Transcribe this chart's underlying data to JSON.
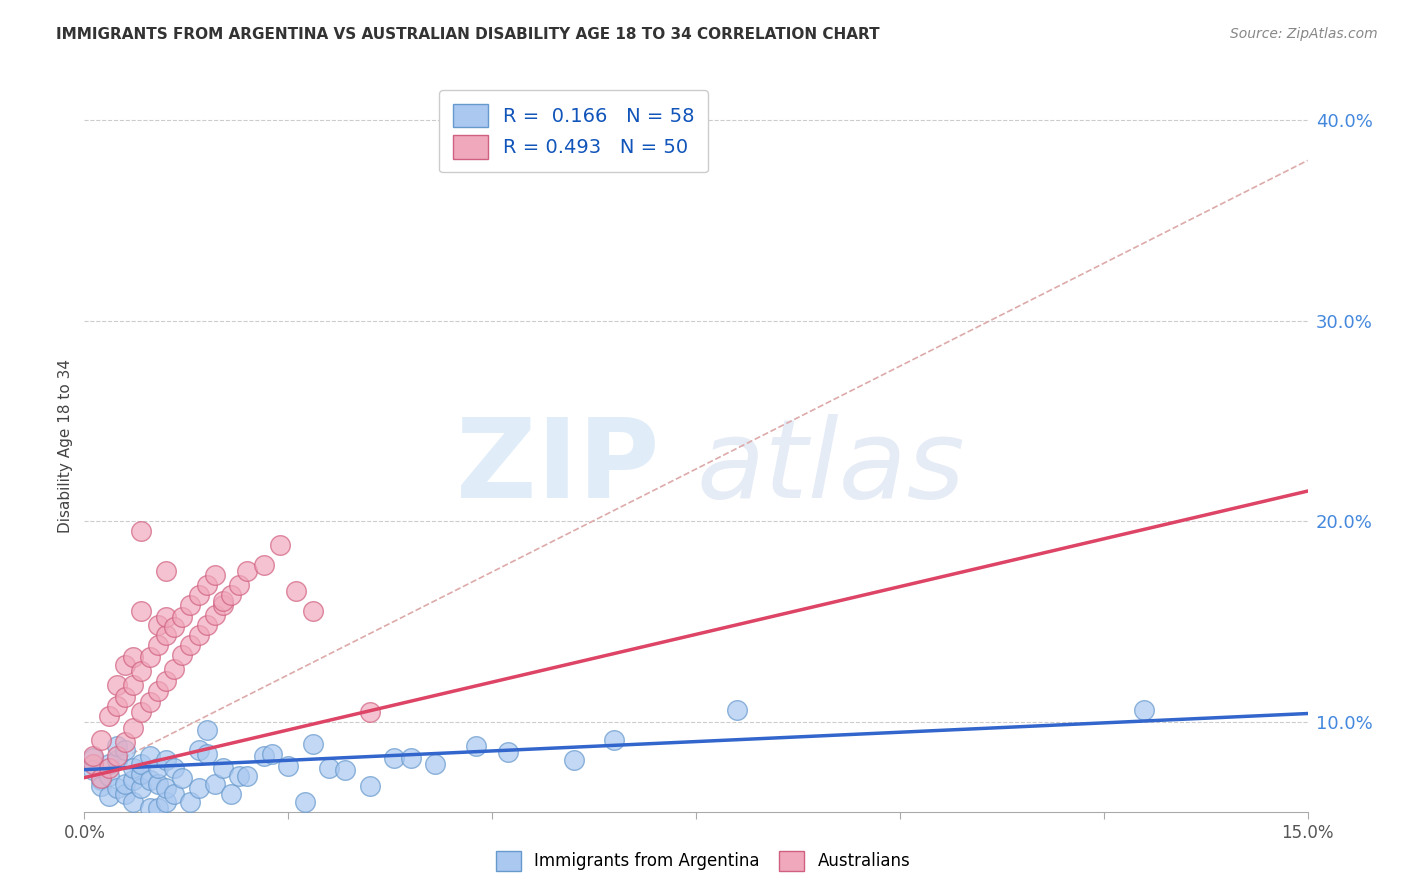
{
  "title": "IMMIGRANTS FROM ARGENTINA VS AUSTRALIAN DISABILITY AGE 18 TO 34 CORRELATION CHART",
  "source": "Source: ZipAtlas.com",
  "ylabel_label": "Disability Age 18 to 34",
  "legend1_r": "0.166",
  "legend1_n": "58",
  "legend2_r": "0.493",
  "legend2_n": "50",
  "legend1_label": "Immigrants from Argentina",
  "legend2_label": "Australians",
  "blue_color": "#aac8f0",
  "pink_color": "#f0a8bc",
  "blue_edge_color": "#6699cc",
  "pink_edge_color": "#d06080",
  "blue_line_color": "#3366cc",
  "pink_line_color": "#dd4466",
  "gray_dash_color": "#ddaaaa",
  "blue_scatter": [
    [
      0.001,
      0.082
    ],
    [
      0.001,
      0.076
    ],
    [
      0.002,
      0.071
    ],
    [
      0.002,
      0.068
    ],
    [
      0.003,
      0.073
    ],
    [
      0.003,
      0.063
    ],
    [
      0.003,
      0.079
    ],
    [
      0.004,
      0.067
    ],
    [
      0.004,
      0.081
    ],
    [
      0.004,
      0.088
    ],
    [
      0.005,
      0.086
    ],
    [
      0.005,
      0.064
    ],
    [
      0.005,
      0.069
    ],
    [
      0.006,
      0.06
    ],
    [
      0.006,
      0.071
    ],
    [
      0.006,
      0.077
    ],
    [
      0.007,
      0.067
    ],
    [
      0.007,
      0.074
    ],
    [
      0.007,
      0.079
    ],
    [
      0.008,
      0.057
    ],
    [
      0.008,
      0.071
    ],
    [
      0.008,
      0.083
    ],
    [
      0.009,
      0.057
    ],
    [
      0.009,
      0.069
    ],
    [
      0.009,
      0.077
    ],
    [
      0.01,
      0.06
    ],
    [
      0.01,
      0.067
    ],
    [
      0.01,
      0.081
    ],
    [
      0.011,
      0.064
    ],
    [
      0.011,
      0.077
    ],
    [
      0.012,
      0.072
    ],
    [
      0.013,
      0.06
    ],
    [
      0.014,
      0.067
    ],
    [
      0.014,
      0.086
    ],
    [
      0.015,
      0.096
    ],
    [
      0.015,
      0.084
    ],
    [
      0.016,
      0.069
    ],
    [
      0.017,
      0.077
    ],
    [
      0.018,
      0.064
    ],
    [
      0.019,
      0.073
    ],
    [
      0.02,
      0.073
    ],
    [
      0.022,
      0.083
    ],
    [
      0.023,
      0.084
    ],
    [
      0.025,
      0.078
    ],
    [
      0.027,
      0.06
    ],
    [
      0.028,
      0.089
    ],
    [
      0.03,
      0.077
    ],
    [
      0.032,
      0.076
    ],
    [
      0.035,
      0.068
    ],
    [
      0.038,
      0.082
    ],
    [
      0.04,
      0.082
    ],
    [
      0.043,
      0.079
    ],
    [
      0.048,
      0.088
    ],
    [
      0.052,
      0.085
    ],
    [
      0.06,
      0.081
    ],
    [
      0.065,
      0.091
    ],
    [
      0.08,
      0.106
    ],
    [
      0.13,
      0.106
    ]
  ],
  "pink_scatter": [
    [
      0.001,
      0.079
    ],
    [
      0.001,
      0.083
    ],
    [
      0.002,
      0.072
    ],
    [
      0.002,
      0.091
    ],
    [
      0.003,
      0.077
    ],
    [
      0.003,
      0.103
    ],
    [
      0.004,
      0.083
    ],
    [
      0.004,
      0.108
    ],
    [
      0.004,
      0.118
    ],
    [
      0.005,
      0.09
    ],
    [
      0.005,
      0.112
    ],
    [
      0.005,
      0.128
    ],
    [
      0.006,
      0.097
    ],
    [
      0.006,
      0.118
    ],
    [
      0.006,
      0.132
    ],
    [
      0.007,
      0.105
    ],
    [
      0.007,
      0.125
    ],
    [
      0.007,
      0.155
    ],
    [
      0.007,
      0.195
    ],
    [
      0.008,
      0.11
    ],
    [
      0.008,
      0.132
    ],
    [
      0.009,
      0.115
    ],
    [
      0.009,
      0.138
    ],
    [
      0.009,
      0.148
    ],
    [
      0.01,
      0.12
    ],
    [
      0.01,
      0.143
    ],
    [
      0.01,
      0.152
    ],
    [
      0.01,
      0.175
    ],
    [
      0.011,
      0.126
    ],
    [
      0.011,
      0.147
    ],
    [
      0.012,
      0.133
    ],
    [
      0.012,
      0.152
    ],
    [
      0.013,
      0.138
    ],
    [
      0.013,
      0.158
    ],
    [
      0.014,
      0.143
    ],
    [
      0.014,
      0.163
    ],
    [
      0.015,
      0.148
    ],
    [
      0.015,
      0.168
    ],
    [
      0.016,
      0.153
    ],
    [
      0.016,
      0.173
    ],
    [
      0.017,
      0.158
    ],
    [
      0.017,
      0.16
    ],
    [
      0.018,
      0.163
    ],
    [
      0.019,
      0.168
    ],
    [
      0.02,
      0.175
    ],
    [
      0.022,
      0.178
    ],
    [
      0.024,
      0.188
    ],
    [
      0.026,
      0.165
    ],
    [
      0.028,
      0.155
    ],
    [
      0.035,
      0.105
    ]
  ],
  "xmin": 0.0,
  "xmax": 0.15,
  "ymin": 0.055,
  "ymax": 0.42,
  "yticks": [
    0.1,
    0.2,
    0.3,
    0.4
  ],
  "ytick_labels": [
    "10.0%",
    "20.0%",
    "30.0%",
    "40.0%"
  ],
  "grid_lines": [
    0.1,
    0.2,
    0.3,
    0.4
  ],
  "xticks": [
    0.0,
    0.025,
    0.05,
    0.075,
    0.1,
    0.125,
    0.15
  ],
  "blue_trend": [
    0.0,
    0.15,
    0.076,
    0.104
  ],
  "pink_trend": [
    0.0,
    0.15,
    0.072,
    0.215
  ],
  "gray_dash": [
    0.0,
    0.15,
    0.072,
    0.38
  ]
}
